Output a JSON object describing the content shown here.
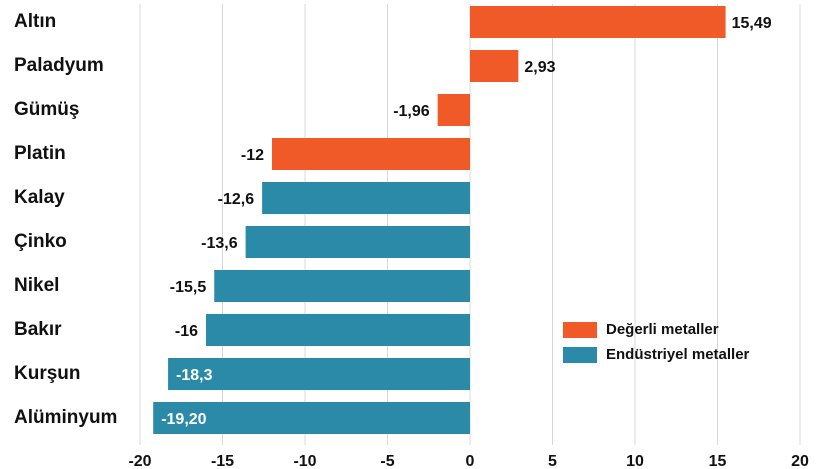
{
  "chart_data": {
    "type": "bar",
    "orientation": "horizontal",
    "categories": [
      "Altın",
      "Paladyum",
      "Gümüş",
      "Platin",
      "Kalay",
      "Çinko",
      "Nikel",
      "Bakır",
      "Kurşun",
      "Alüminyum"
    ],
    "series": [
      {
        "name": "Değerli metaller",
        "color": "#f05a28",
        "values": [
          15.49,
          2.93,
          -1.96,
          -12,
          null,
          null,
          null,
          null,
          null,
          null
        ],
        "value_labels": [
          "15,49",
          "2,93",
          "-1,96",
          "-12",
          null,
          null,
          null,
          null,
          null,
          null
        ]
      },
      {
        "name": "Endüstriyel metaller",
        "color": "#2a8aa8",
        "values": [
          null,
          null,
          null,
          null,
          -12.6,
          -13.6,
          -15.5,
          -16,
          -18.3,
          -19.2
        ],
        "value_labels": [
          null,
          null,
          null,
          null,
          "-12,6",
          "-13,6",
          "-15,5",
          "-16",
          "-18,3",
          "-19,20"
        ]
      }
    ],
    "xlim": [
      -20,
      20
    ],
    "xticks": [
      -20,
      -15,
      -10,
      -5,
      0,
      5,
      10,
      15,
      20
    ],
    "grid": true
  }
}
